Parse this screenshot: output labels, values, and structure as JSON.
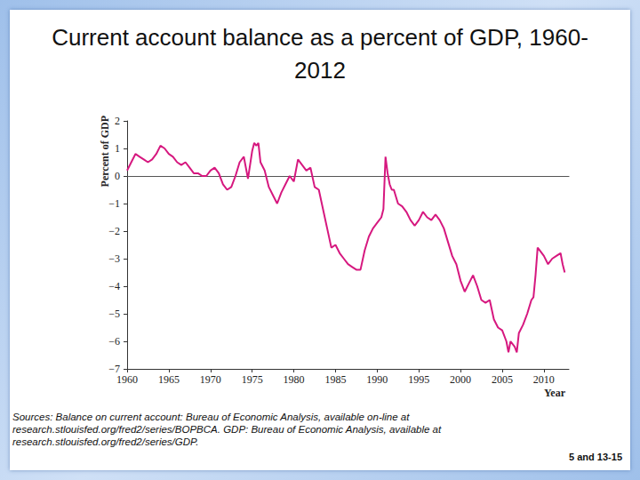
{
  "chart_data": {
    "type": "line",
    "title": "Current account balance as a percent of GDP, 1960-\n2012",
    "source": [
      "Sources: Balance on current account: Bureau of Economic Analysis, available on-line at",
      "research.stlouisfed.org/fred2/series/BOPBCA. GDP: Bureau of Economic Analysis, available at",
      "research.stlouisfed.org/fred2/series/GDP."
    ],
    "page_label": "5 and 13-15",
    "x_label": "Year",
    "y_label": "Percent of GDP",
    "color": "#d6187f",
    "grid": false,
    "x": [
      1960.0,
      1960.5,
      1961.0,
      1961.5,
      1962.0,
      1962.5,
      1963.0,
      1963.5,
      1964.0,
      1964.5,
      1965.0,
      1965.5,
      1966.0,
      1966.5,
      1967.0,
      1967.5,
      1968.0,
      1968.5,
      1969.0,
      1969.5,
      1970.0,
      1970.5,
      1971.0,
      1971.5,
      1972.0,
      1972.5,
      1973.0,
      1973.5,
      1974.0,
      1974.5,
      1975.0,
      1975.25,
      1975.5,
      1975.75,
      1976.0,
      1976.5,
      1977.0,
      1977.5,
      1978.0,
      1978.5,
      1979.0,
      1979.5,
      1980.0,
      1980.5,
      1981.0,
      1981.5,
      1982.0,
      1982.5,
      1983.0,
      1983.5,
      1984.0,
      1984.5,
      1985.0,
      1985.5,
      1986.0,
      1986.5,
      1987.0,
      1987.5,
      1988.0,
      1988.5,
      1989.0,
      1989.5,
      1990.0,
      1990.5,
      1990.75,
      1991.0,
      1991.25,
      1991.5,
      1991.75,
      1992.0,
      1992.5,
      1993.0,
      1993.5,
      1994.0,
      1994.5,
      1995.0,
      1995.5,
      1996.0,
      1996.5,
      1997.0,
      1997.5,
      1998.0,
      1998.5,
      1999.0,
      1999.5,
      2000.0,
      2000.5,
      2001.0,
      2001.5,
      2002.0,
      2002.5,
      2003.0,
      2003.5,
      2004.0,
      2004.5,
      2005.0,
      2005.5,
      2005.75,
      2006.0,
      2006.5,
      2006.75,
      2007.0,
      2007.5,
      2008.0,
      2008.5,
      2008.75,
      2009.0,
      2009.25,
      2009.5,
      2010.0,
      2010.5,
      2011.0,
      2011.5,
      2012.0,
      2012.25,
      2012.5
    ],
    "values": [
      0.2,
      0.5,
      0.8,
      0.7,
      0.6,
      0.5,
      0.6,
      0.8,
      1.1,
      1.0,
      0.8,
      0.7,
      0.5,
      0.4,
      0.5,
      0.3,
      0.1,
      0.1,
      0.0,
      0.0,
      0.2,
      0.3,
      0.1,
      -0.3,
      -0.5,
      -0.4,
      0.0,
      0.5,
      0.7,
      -0.1,
      0.9,
      1.2,
      1.1,
      1.2,
      0.5,
      0.2,
      -0.4,
      -0.7,
      -1.0,
      -0.6,
      -0.3,
      0.0,
      -0.2,
      0.6,
      0.4,
      0.2,
      0.3,
      -0.4,
      -0.5,
      -1.2,
      -1.9,
      -2.6,
      -2.5,
      -2.8,
      -3.0,
      -3.2,
      -3.3,
      -3.4,
      -3.4,
      -2.7,
      -2.2,
      -1.9,
      -1.7,
      -1.5,
      -1.2,
      0.7,
      0.1,
      -0.3,
      -0.5,
      -0.5,
      -1.0,
      -1.1,
      -1.3,
      -1.6,
      -1.8,
      -1.6,
      -1.3,
      -1.5,
      -1.6,
      -1.4,
      -1.6,
      -1.9,
      -2.4,
      -2.9,
      -3.2,
      -3.8,
      -4.2,
      -3.9,
      -3.6,
      -4.0,
      -4.5,
      -4.6,
      -4.5,
      -5.2,
      -5.5,
      -5.6,
      -6.0,
      -6.4,
      -6.0,
      -6.2,
      -6.4,
      -5.7,
      -5.4,
      -5.0,
      -4.5,
      -4.4,
      -3.6,
      -2.6,
      -2.7,
      -2.9,
      -3.2,
      -3.0,
      -2.9,
      -2.8,
      -3.2,
      -3.5
    ],
    "xlim": [
      1960,
      2013
    ],
    "xticks": [
      1960,
      1965,
      1970,
      1975,
      1980,
      1985,
      1990,
      1995,
      2000,
      2005,
      2010
    ],
    "ylim": [
      -7,
      2
    ],
    "yticks": [
      {
        "value": -7,
        "label": "−7"
      },
      {
        "value": -6,
        "label": "−6"
      },
      {
        "value": -5,
        "label": "−5"
      },
      {
        "value": -4,
        "label": "−4"
      },
      {
        "value": -3,
        "label": "−3"
      },
      {
        "value": -2,
        "label": "−2"
      },
      {
        "value": -1,
        "label": "−1"
      },
      0,
      1,
      2
    ]
  }
}
